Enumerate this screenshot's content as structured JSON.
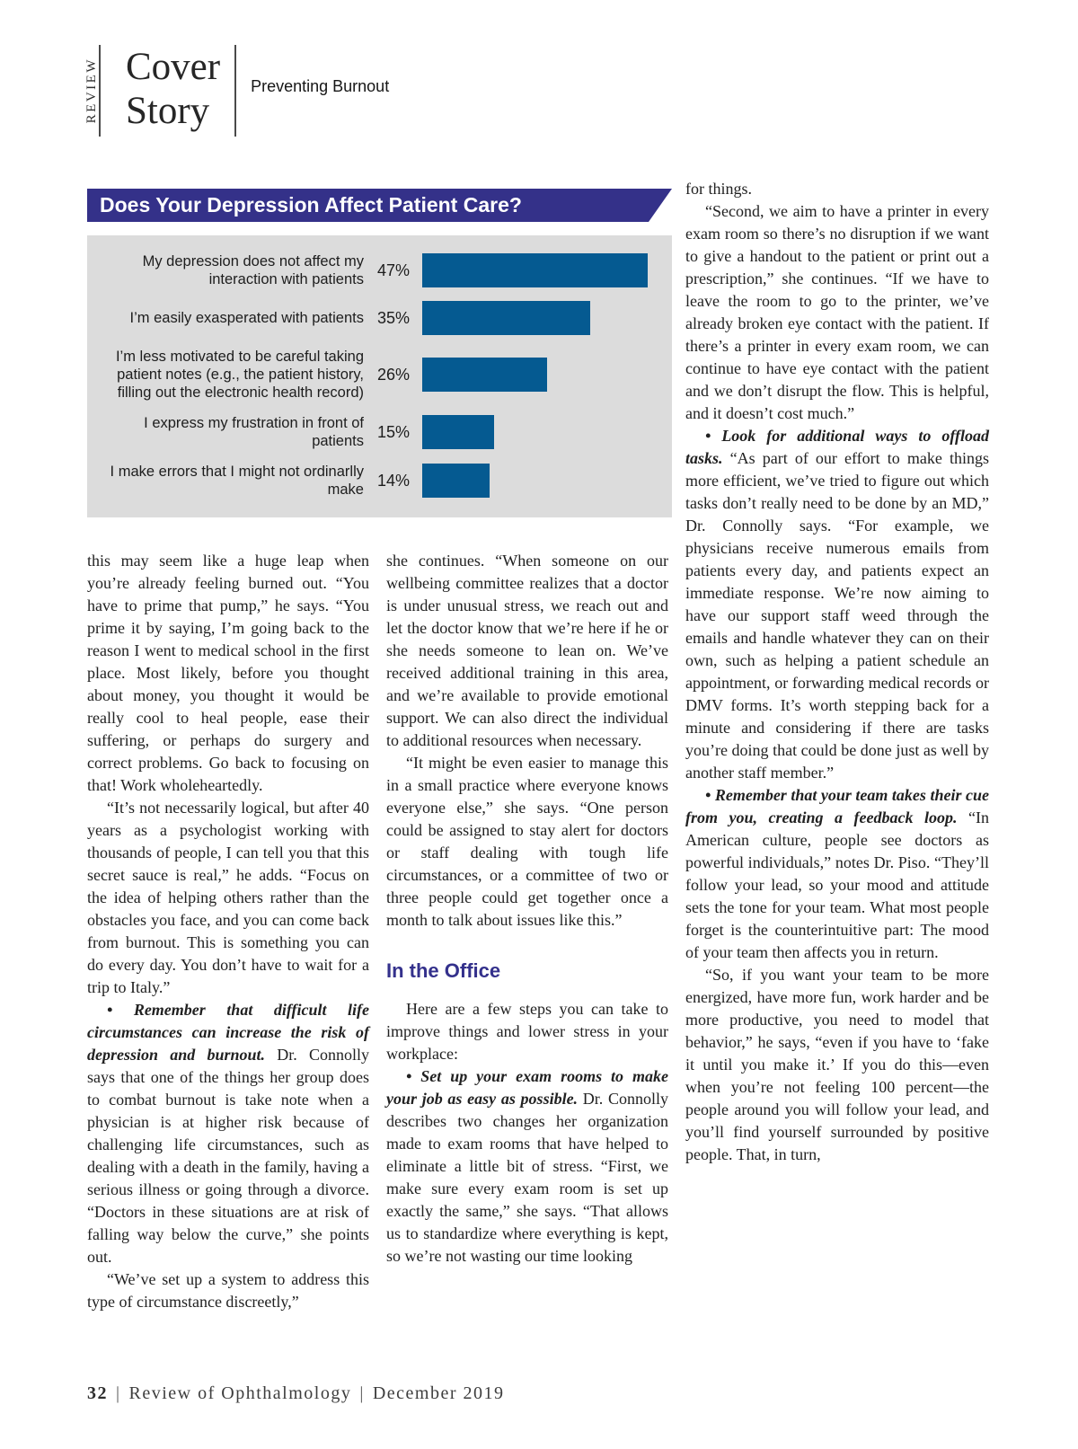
{
  "header": {
    "kicker": "REVIEW",
    "title_line1": "Cover",
    "title_line2": "Story",
    "subtitle": "Preventing Burnout"
  },
  "chart_data": {
    "type": "bar",
    "orientation": "horizontal",
    "title": "Does Your Depression Affect Patient Care?",
    "categories": [
      "My depression does not affect my interaction with patients",
      "I’m easily exasperated with patients",
      "I’m less motivated to be careful taking patient notes (e.g., the patient history, filling out the electronic health record)",
      "I express my frustration in front of patients",
      "I make errors that I might not ordinarlly make"
    ],
    "values": [
      47,
      35,
      26,
      15,
      14
    ],
    "unit": "%",
    "xlim": [
      0,
      50
    ],
    "grid": false,
    "legend": false,
    "colors": {
      "bar": "#055a91",
      "panel_bg": "#dcdcdc",
      "title_bg": "#343189",
      "title_text": "#ffffff"
    }
  },
  "bullet_glyph": "•",
  "columns": [
    {
      "blocks": [
        {
          "type": "p",
          "indent": false,
          "text": "this may seem like a huge leap when you’re already feeling burned out. “You have to prime that pump,” he says. “You prime it by saying, I’m going back to the reason I went to medical school in the first place. Most likely, before you thought about money, you thought it would be really cool to heal people, ease their suffering, or perhaps do surgery and correct problems. Go back to focusing on that! Work wholeheartedly."
        },
        {
          "type": "p",
          "indent": true,
          "text": "“It’s not necessarily logical, but after 40 years as a psychologist working with thousands of people, I can tell you that this secret sauce is real,” he adds. “Focus on the idea of helping others rather than the obstacles you face, and you can come back from burnout. This is something you can do every day. You don’t have to wait for a trip to Italy.”"
        },
        {
          "type": "bullet",
          "lead": "Remember that difficult life circumstances can increase the risk of depression and burnout.",
          "text": "Dr. Connolly says that one of the things her group does to combat burnout is take note when a physician is at higher risk because of challenging life circumstances, such as dealing with a death in the family, having a serious illness or going through a divorce. “Doctors in these situations are at risk of falling way below the curve,” she points out."
        },
        {
          "type": "p",
          "indent": true,
          "text": "“We’ve set up a system to address this type of circumstance discreetly,”"
        }
      ]
    },
    {
      "blocks": [
        {
          "type": "p",
          "indent": false,
          "text": "she continues. “When someone on our wellbeing committee realizes that a doctor is under unusual stress, we reach out and let the doctor know that we’re here if he or she needs someone to lean on. We’ve received additional training in this area, and we’re available to provide emotional support. We can also direct the individual to additional resources when necessary."
        },
        {
          "type": "p",
          "indent": true,
          "text": "“It might be even easier to manage this in a small practice where everyone knows everyone else,” she says. “One person could be assigned to stay alert for doctors or staff dealing with tough life circumstances, or a committee of two or three people could get together once a month to talk about issues like this.”"
        },
        {
          "type": "subhead",
          "text": "In the Office"
        },
        {
          "type": "p",
          "indent": true,
          "text": "Here are a few steps you can take to improve things and lower stress in your workplace:"
        },
        {
          "type": "bullet",
          "lead": "Set up your exam rooms to make your job as easy as possible.",
          "text": "Dr. Connolly describes two changes her organization made to exam rooms that have helped to eliminate a little bit of stress. “First, we make sure every exam room is set up exactly the same,” she says. “That allows us to standardize where everything is kept, so we’re not wasting our time looking"
        }
      ]
    },
    {
      "blocks": [
        {
          "type": "p",
          "indent": false,
          "text": "for things."
        },
        {
          "type": "p",
          "indent": true,
          "text": "“Second, we aim to have a printer in every exam room so there’s no disruption if we want to give a handout to the patient or print out a prescription,” she continues. “If we have to leave the room to go to the printer, we’ve already broken eye contact with the patient. If there’s a printer in every exam room, we can continue to have eye contact with the patient and we don’t disrupt the flow. This is helpful, and it doesn’t cost much.”"
        },
        {
          "type": "bullet",
          "lead": "Look for additional ways to offload tasks.",
          "text": "“As part of our effort to make things more efficient, we’ve tried to figure out which tasks don’t really need to be done by an MD,” Dr. Connolly says. “For example, we physicians receive numerous emails from patients every day, and patients expect an immediate response. We’re now aiming to have our support staff weed through the emails and handle whatever they can on their own, such as helping a patient schedule an appointment, or forwarding medical records or DMV forms. It’s worth stepping back for a minute and considering if there are tasks you’re doing that could be done just as well by another staff member.”"
        },
        {
          "type": "bullet",
          "lead": "Remember that your team takes their cue from you, creating a feedback loop.",
          "text": "“In American culture, people see doctors as powerful individuals,” notes Dr. Piso. “They’ll follow your lead, so your mood and attitude sets the tone for your team. What most people forget is the counterintuitive part: The mood of your team then affects you in return."
        },
        {
          "type": "p",
          "indent": true,
          "text": "“So, if you want your team to be more energized, have more fun, work harder and be more productive, you need to model that behavior,” he says, “even if you have to ‘fake it until you make it.’ If you do this—even when you’re not feeling 100 percent—the people around you will follow your lead, and you’ll find yourself surrounded by positive people. That, in turn,"
        }
      ]
    }
  ],
  "footer": {
    "page_number": "32",
    "separator": "|",
    "publication": "Review of Ophthalmology",
    "issue": "December 2019"
  }
}
